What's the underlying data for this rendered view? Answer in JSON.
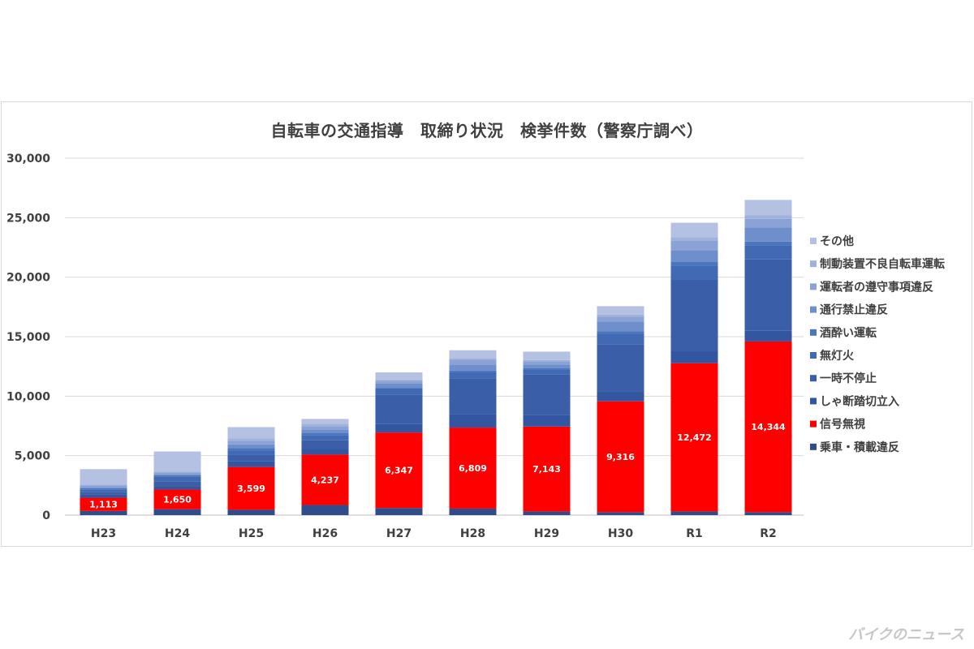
{
  "watermark": "バイクのニュース",
  "chart_data": {
    "type": "bar",
    "stacked": true,
    "title": "自転車の交通指導　取締り状況　検挙件数（警察庁調べ）",
    "xlabel": "",
    "ylabel": "",
    "ylim": [
      0,
      30000
    ],
    "yticks": [
      0,
      5000,
      10000,
      15000,
      20000,
      25000,
      30000
    ],
    "ytick_labels": [
      "0",
      "5,000",
      "10,000",
      "15,000",
      "20,000",
      "25,000",
      "30,000"
    ],
    "grid": true,
    "legend_position": "right",
    "categories": [
      "H23",
      "H24",
      "H25",
      "H26",
      "H27",
      "H28",
      "H29",
      "H30",
      "R1",
      "R2"
    ],
    "series": [
      {
        "name": "乗車・積載違反",
        "color": "#2e4d8a",
        "values": [
          350,
          500,
          450,
          850,
          600,
          550,
          300,
          250,
          300,
          250
        ]
      },
      {
        "name": "信号無視",
        "color": "#ff0000",
        "values": [
          1113,
          1650,
          3599,
          4237,
          6347,
          6809,
          7143,
          9316,
          12472,
          14344
        ],
        "labels": [
          "1,113",
          "1,650",
          "3,599",
          "4,237",
          "6,347",
          "6,809",
          "7,143",
          "9,316",
          "12,472",
          "14,344"
        ]
      },
      {
        "name": "しゃ断踏切立入",
        "color": "#3456a0",
        "values": [
          300,
          300,
          500,
          500,
          700,
          1100,
          1000,
          800,
          1000,
          900
        ]
      },
      {
        "name": "一時不停止",
        "color": "#3a5ea8",
        "values": [
          200,
          400,
          500,
          700,
          2500,
          3000,
          3400,
          4000,
          6000,
          6000
        ]
      },
      {
        "name": "無灯火",
        "color": "#4169b4",
        "values": [
          200,
          400,
          400,
          400,
          500,
          600,
          400,
          900,
          1200,
          1200
        ]
      },
      {
        "name": "酒酔い運転",
        "color": "#4a76be",
        "values": [
          100,
          100,
          200,
          200,
          100,
          100,
          100,
          200,
          300,
          300
        ]
      },
      {
        "name": "通行禁止違反",
        "color": "#6f8fcc",
        "values": [
          100,
          100,
          300,
          300,
          300,
          500,
          300,
          800,
          1000,
          1200
        ]
      },
      {
        "name": "運転者の遵守事項違反",
        "color": "#8aa2d6",
        "values": [
          150,
          150,
          300,
          300,
          250,
          400,
          300,
          400,
          800,
          700
        ]
      },
      {
        "name": "制動装置不良自転車運転",
        "color": "#9fb2dc",
        "values": [
          50,
          50,
          200,
          200,
          100,
          100,
          100,
          200,
          300,
          300
        ]
      },
      {
        "name": "その他",
        "color": "#b4c1e2",
        "values": [
          1300,
          1700,
          950,
          400,
          600,
          700,
          700,
          700,
          1200,
          1300
        ]
      }
    ]
  }
}
